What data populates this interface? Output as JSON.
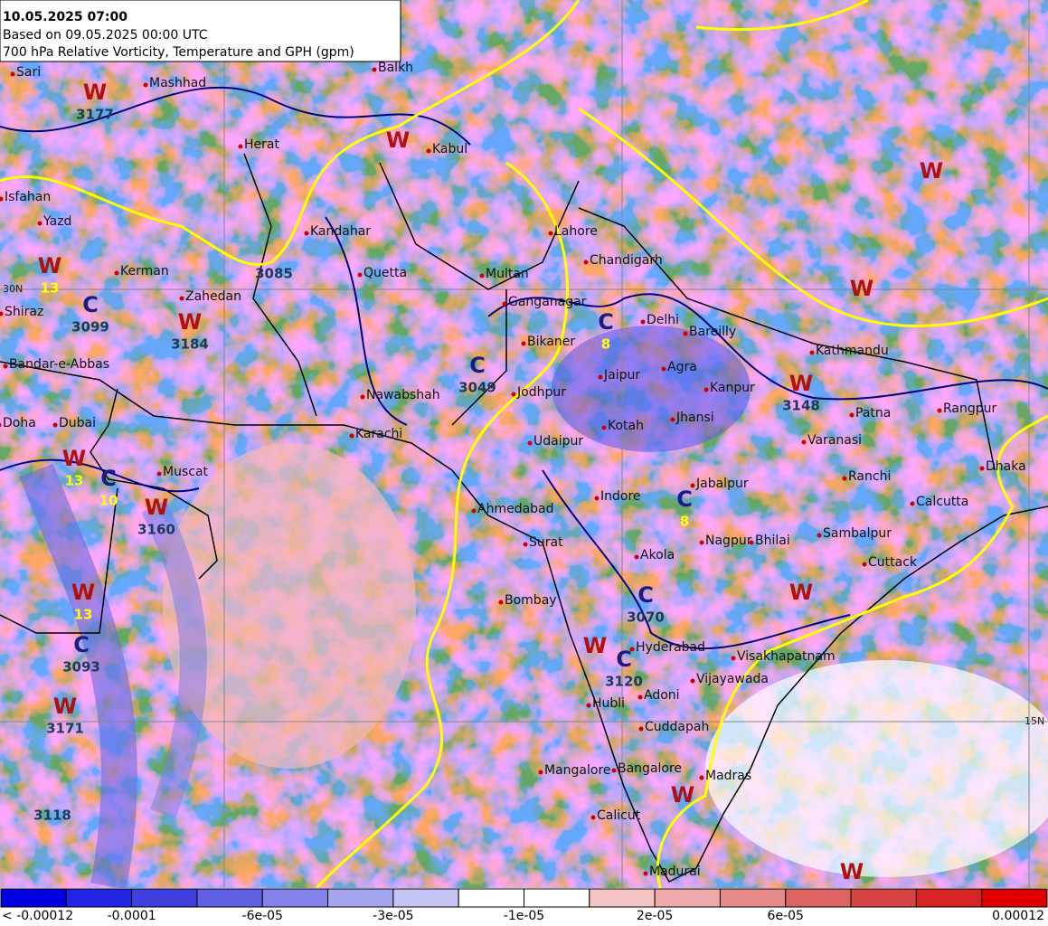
{
  "header": {
    "title": "10.05.2025 07:00",
    "subtitle": "Based on 09.05.2025 00:00 UTC",
    "description": "700 hPa Relative Vorticity, Temperature and GPH (gpm)"
  },
  "cities": [
    "Sari",
    "Mashhad",
    "Herat",
    "Kabul",
    "Balkh",
    "Isfahan",
    "Yazd",
    "Kerman",
    "Kandahar",
    "Quetta",
    "Zahedan",
    "Shiraz",
    "Bandar-e-Abbas",
    "Multan",
    "Lahore",
    "Chandigarh",
    "Ganganagar",
    "Delhi",
    "Bareilly",
    "Bikaner",
    "Agra",
    "Jaipur",
    "Kanpur",
    "Jodhpur",
    "Nawabshah",
    "Kotah",
    "Jhansi",
    "Patna",
    "Varanasi",
    "Doha",
    "Dubai",
    "Karachi",
    "Udaipur",
    "Muscat",
    "Ranchi",
    "Dhaka",
    "Jabalpur",
    "Calcutta",
    "Indore",
    "Ahmedabad",
    "Surat",
    "Nagpur",
    "Bhilai",
    "Sambalpur",
    "Akola",
    "Cuttack",
    "Bombay",
    "Hyderabad",
    "Visakhapatnam",
    "Vijayawada",
    "Adoni",
    "Hubli",
    "Cuddapah",
    "Mangalore",
    "Bangalore",
    "Madras",
    "Calicut",
    "Madurai",
    "Kathmandu",
    "Rangpur"
  ],
  "centers": [
    {
      "letter": "W",
      "value": "3177"
    },
    {
      "letter": "W"
    },
    {
      "value": "3085"
    },
    {
      "letter": "W",
      "value": "13"
    },
    {
      "letter": "C",
      "value": "3099"
    },
    {
      "letter": "W",
      "value": "3184"
    },
    {
      "letter": "C",
      "value": "3049"
    },
    {
      "letter": "C",
      "value": "8"
    },
    {
      "letter": "W",
      "value": "3148"
    },
    {
      "letter": "W",
      "value": "13"
    },
    {
      "letter": "C",
      "value": "10"
    },
    {
      "letter": "W",
      "value": "3160"
    },
    {
      "letter": "C",
      "value": "8"
    },
    {
      "letter": "W",
      "value": "13"
    },
    {
      "letter": "C",
      "value": "3093"
    },
    {
      "letter": "W",
      "value": "3171"
    },
    {
      "value": "3118"
    },
    {
      "letter": "C",
      "value": "3070"
    },
    {
      "letter": "W"
    },
    {
      "letter": "C",
      "value": "3120"
    },
    {
      "letter": "W"
    },
    {
      "letter": "W"
    },
    {
      "letter": "W"
    },
    {
      "letter": "W"
    },
    {
      "letter": "W"
    }
  ],
  "grid_labels": [
    "15N",
    "30N"
  ],
  "colorbar": {
    "colors": [
      "#0000e0",
      "#2424e4",
      "#4040e0",
      "#6060e4",
      "#8282ea",
      "#a4a4f0",
      "#c4c4f6",
      "#ffffff",
      "#ffffff",
      "#f6c4c4",
      "#eeaaaa",
      "#e68a8a",
      "#dc6464",
      "#d84444",
      "#d42424",
      "#e00000"
    ],
    "labels": [
      "< -0.00012",
      "-0.0001",
      "-6e-05",
      "-3e-05",
      "-1e-05",
      "2e-05",
      "6e-05",
      "0.00012"
    ]
  }
}
